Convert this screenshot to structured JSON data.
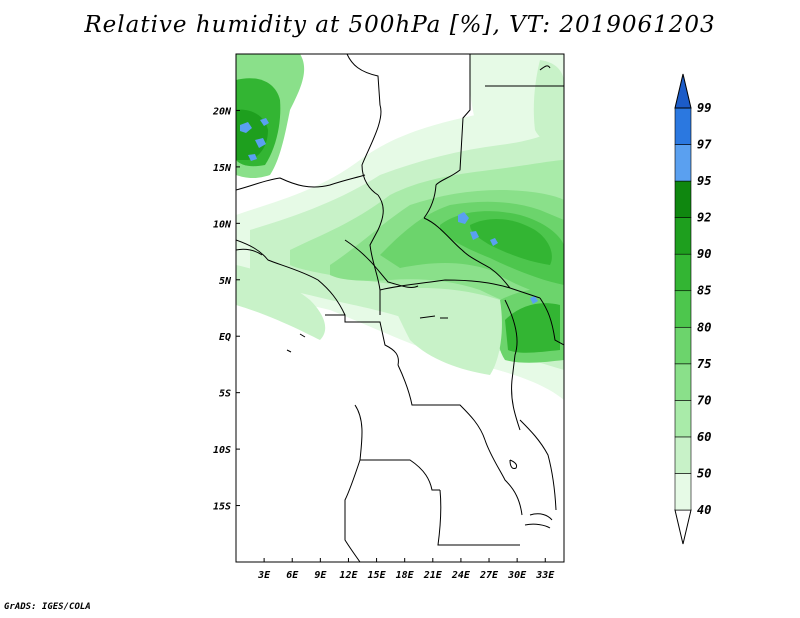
{
  "title": "Relative humidity at 500hPa [%], VT: 2019061203",
  "credit": "GrADS: IGES/COLA",
  "map": {
    "lon_range": [
      0,
      35
    ],
    "lat_range": [
      -20,
      25
    ],
    "lon_ticks": [
      "3E",
      "6E",
      "9E",
      "12E",
      "15E",
      "18E",
      "21E",
      "24E",
      "27E",
      "30E",
      "33E"
    ],
    "lat_ticks": [
      "20N",
      "15N",
      "10N",
      "5N",
      "EQ",
      "5S",
      "10S",
      "15S"
    ]
  },
  "colorbar": {
    "levels": [
      "40",
      "50",
      "60",
      "70",
      "75",
      "80",
      "85",
      "90",
      "92",
      "95",
      "97",
      "99"
    ],
    "colors": [
      "#ffffff",
      "#e6fae6",
      "#c8f2c8",
      "#a9eba9",
      "#8ae08a",
      "#6cd46c",
      "#4dc64d",
      "#33b533",
      "#1e9f1e",
      "#0f870f",
      "#5aa0f0",
      "#2b78e0",
      "#1c5cc8"
    ]
  }
}
